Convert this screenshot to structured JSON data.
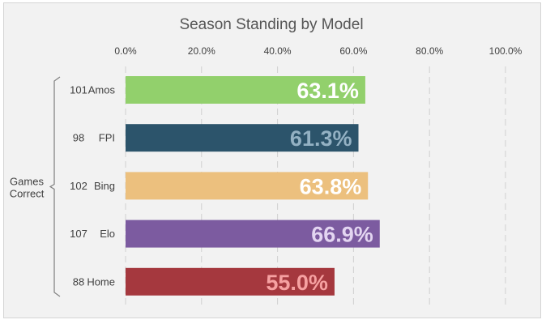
{
  "chart_data": {
    "type": "bar",
    "orientation": "horizontal",
    "title": "Season Standing by Model",
    "group_label": "Games\nCorrect",
    "categories": [
      "Amos",
      "FPI",
      "Bing",
      "Elo",
      "Home"
    ],
    "games_correct": [
      101,
      98,
      102,
      107,
      88
    ],
    "values": [
      63.1,
      61.3,
      63.8,
      66.9,
      55.0
    ],
    "data_labels": [
      "63.1%",
      "61.3%",
      "63.8%",
      "66.9%",
      "55.0%"
    ],
    "x_ticks": [
      "0.0%",
      "20.0%",
      "40.0%",
      "60.0%",
      "80.0%",
      "100.0%"
    ],
    "xlim": [
      0,
      100
    ],
    "x_axis_position": "top",
    "grid": true,
    "bar_colors": [
      "#92d06c",
      "#2c546b",
      "#ecc07e",
      "#7c5ba0",
      "#a5383e"
    ],
    "label_colors": [
      "#ffffff",
      "#93b1c3",
      "#ffffff",
      "#e3d5f1",
      "#f6a1a1"
    ]
  }
}
